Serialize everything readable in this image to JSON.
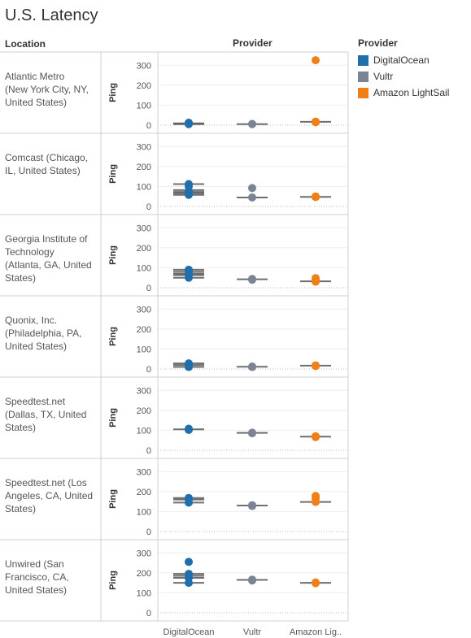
{
  "page": {
    "title": "U.S. Latency"
  },
  "headers": {
    "location": "Location",
    "provider": "Provider"
  },
  "legend": {
    "title": "Provider",
    "items": [
      {
        "label": "DigitalOcean",
        "color": "#1f6fad"
      },
      {
        "label": "Vultr",
        "color": "#7b8394"
      },
      {
        "label": "Amazon LightSail",
        "color": "#f07f17"
      }
    ]
  },
  "chart_data": {
    "type": "scatter",
    "title": "U.S. Latency",
    "ylabel": "Ping",
    "ylim": [
      0,
      350
    ],
    "yticks": [
      0,
      100,
      200,
      300
    ],
    "gridlines": true,
    "categories": [
      "DigitalOcean",
      "Vultr",
      "Amazon Lig.."
    ],
    "category_colors": [
      "#1f6fad",
      "#7b8394",
      "#f07f17"
    ],
    "rows": [
      {
        "location_lines": [
          "Atlantic Metro",
          "(New York City, NY,",
          "United States)"
        ],
        "series": [
          {
            "points": [
              5,
              8,
              10,
              12
            ],
            "lines": [
              5,
              9
            ]
          },
          {
            "points": [
              5,
              6
            ],
            "lines": [
              5
            ]
          },
          {
            "points": [
              15,
              18,
              325
            ],
            "lines": [
              17
            ]
          }
        ]
      },
      {
        "location_lines": [
          "Comcast (Chicago,",
          "IL, United States)"
        ],
        "series": [
          {
            "points": [
              58,
              65,
              75,
              100,
              112
            ],
            "lines": [
              58,
              66,
              73,
              82,
              112
            ]
          },
          {
            "points": [
              45,
              92
            ],
            "lines": [
              45
            ]
          },
          {
            "points": [
              47,
              50
            ],
            "lines": [
              48
            ]
          }
        ]
      },
      {
        "location_lines": [
          "Georgia Institute of",
          "Technology",
          "(Atlanta, GA, United",
          "States)"
        ],
        "series": [
          {
            "points": [
              50,
              65,
              80,
              90
            ],
            "lines": [
              50,
              63,
              70,
              80,
              90
            ]
          },
          {
            "points": [
              40,
              44
            ],
            "lines": [
              42
            ]
          },
          {
            "points": [
              30,
              42,
              48
            ],
            "lines": [
              32
            ]
          }
        ]
      },
      {
        "location_lines": [
          "Quonix, Inc.",
          "(Philadelphia, PA,",
          "United States)"
        ],
        "series": [
          {
            "points": [
              10,
              20,
              28
            ],
            "lines": [
              10,
              20,
              28
            ]
          },
          {
            "points": [
              10,
              12
            ],
            "lines": [
              11
            ]
          },
          {
            "points": [
              15,
              18
            ],
            "lines": [
              17
            ]
          }
        ]
      },
      {
        "location_lines": [
          "Speedtest.net",
          "(Dallas, TX, United",
          "States)"
        ],
        "series": [
          {
            "points": [
              102,
              108
            ],
            "lines": [
              105
            ]
          },
          {
            "points": [
              85,
              88
            ],
            "lines": [
              87
            ]
          },
          {
            "points": [
              66,
              70
            ],
            "lines": [
              68
            ]
          }
        ]
      },
      {
        "location_lines": [
          "Speedtest.net (Los",
          "Angeles, CA, United",
          "States)"
        ],
        "series": [
          {
            "points": [
              145,
              160,
              168
            ],
            "lines": [
              145,
              160,
              168
            ]
          },
          {
            "points": [
              128,
              132
            ],
            "lines": [
              130
            ]
          },
          {
            "points": [
              148,
              165,
              178
            ],
            "lines": [
              148
            ]
          }
        ]
      },
      {
        "location_lines": [
          "Unwired (San",
          "Francisco, CA,",
          "United States)"
        ],
        "series": [
          {
            "points": [
              150,
              175,
              195,
              255
            ],
            "lines": [
              150,
              175,
              185,
              195
            ]
          },
          {
            "points": [
              162,
              166
            ],
            "lines": [
              165
            ]
          },
          {
            "points": [
              148,
              152
            ],
            "lines": [
              150
            ]
          }
        ]
      }
    ]
  }
}
